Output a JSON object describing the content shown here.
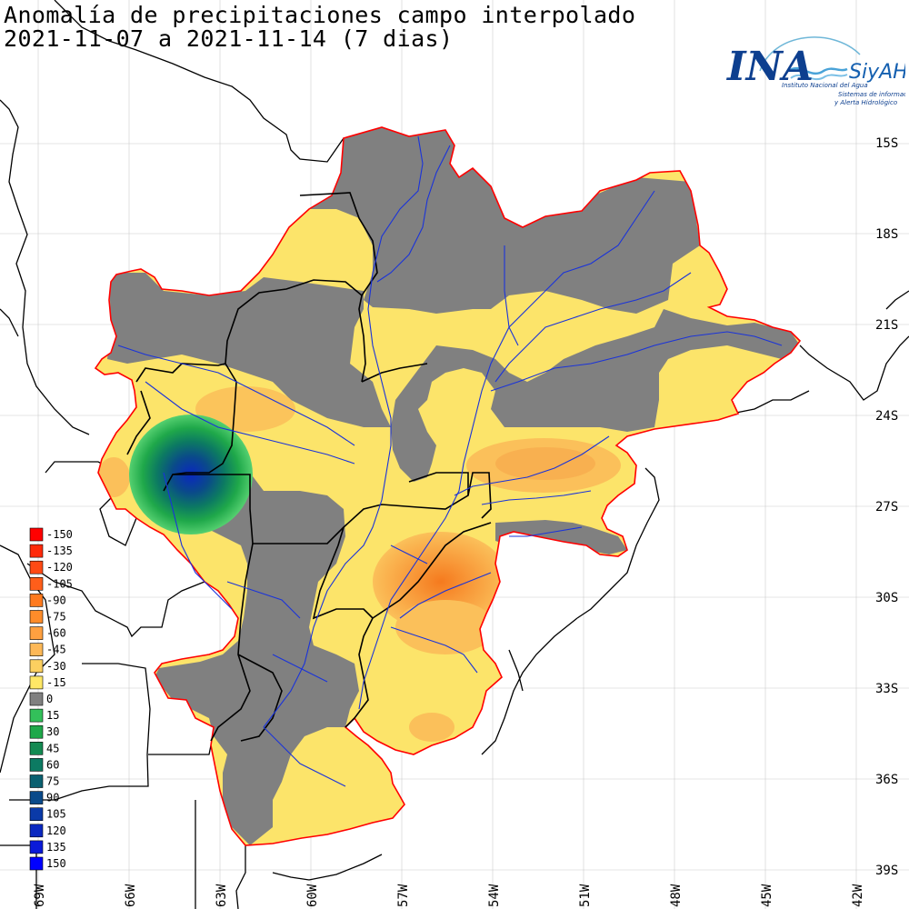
{
  "title": {
    "line1": "Anomalía de precipitaciones campo interpolado",
    "line2": "2021-11-07 a 2021-11-14 (7 dias)"
  },
  "logo": {
    "ina": "INA",
    "siyah": "SiyAH",
    "institute": "Instituto Nacional del Agua",
    "system_line1": "Sistemas de información",
    "system_line2": "y Alerta Hidrológico"
  },
  "lat_labels": [
    "15S",
    "18S",
    "21S",
    "24S",
    "27S",
    "30S",
    "33S",
    "36S",
    "39S"
  ],
  "lon_labels": [
    "69W",
    "66W",
    "63W",
    "60W",
    "57W",
    "54W",
    "51W",
    "48W",
    "45W",
    "42W"
  ],
  "legend": {
    "values": [
      "-150",
      "-135",
      "-120",
      "-105",
      "-90",
      "-75",
      "-60",
      "-45",
      "-30",
      "-15",
      "0",
      "15",
      "30",
      "45",
      "60",
      "75",
      "90",
      "105",
      "120",
      "135",
      "150"
    ],
    "colors": [
      "#ff0000",
      "#ff2a0a",
      "#ff4a14",
      "#ff5e1a",
      "#ff7a1e",
      "#ff8c2a",
      "#ffa040",
      "#fdb857",
      "#fcd060",
      "#ffe866",
      "#808080",
      "#33c05a",
      "#1fa84a",
      "#138a52",
      "#0c7a62",
      "#0a6070",
      "#0a4a8a",
      "#0a3aa8",
      "#0a28c0",
      "#0a1ad8",
      "#0000ff"
    ]
  },
  "colors": {
    "basin_outline": "#ff0000",
    "zero_anomaly": "#808080",
    "light_deficit": "#fce46a",
    "moderate_deficit": "#fbc05a",
    "strong_deficit": "#f79a3a",
    "rivers": "#1a33d9"
  }
}
